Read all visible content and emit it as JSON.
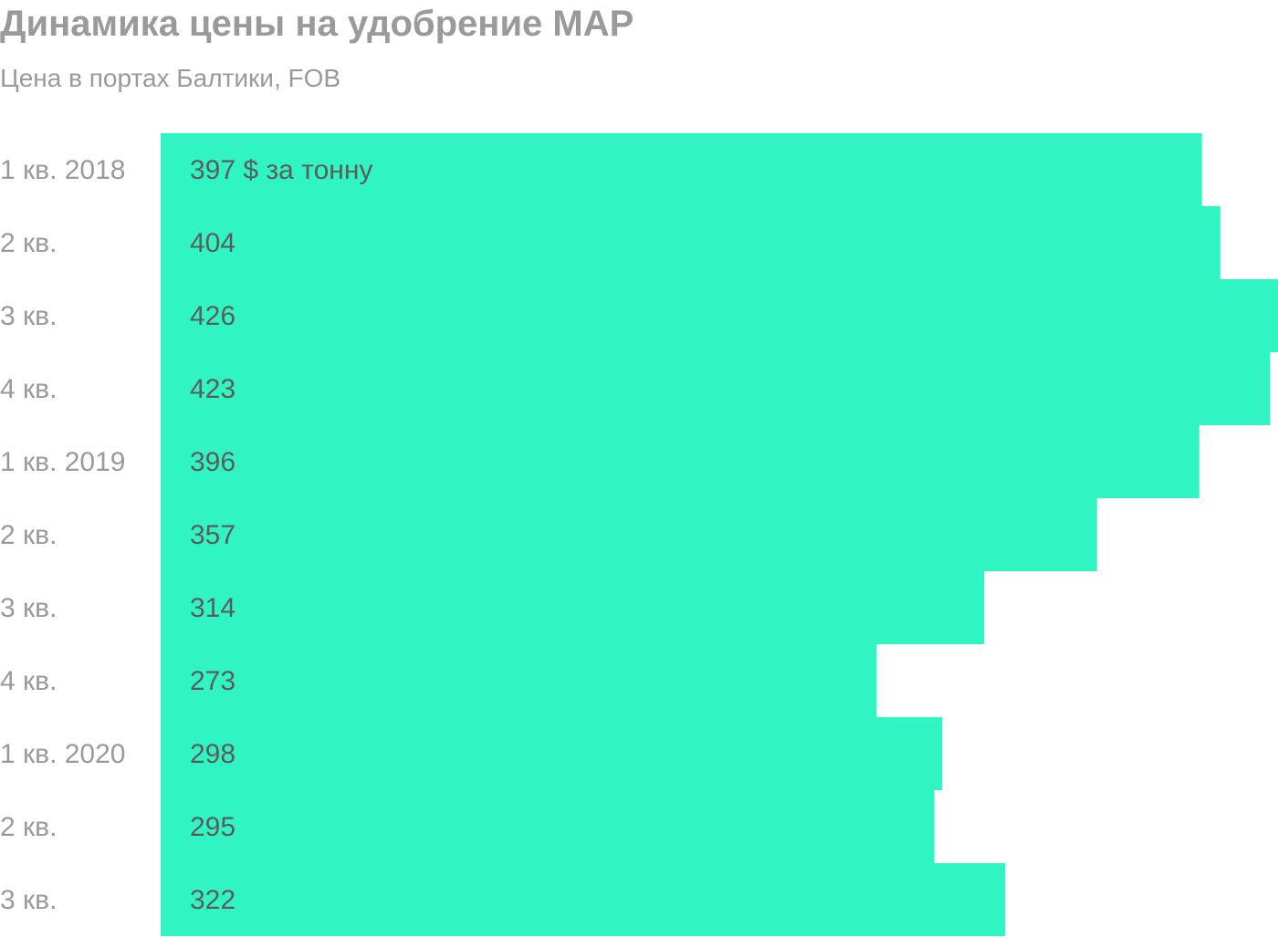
{
  "title": "Динамика цены на удобрение MAP",
  "subtitle": "Цена в портах Балтики, FOB",
  "colors": {
    "bar": "#31f4c3",
    "text_muted": "#9a9a9a",
    "text_value": "#5c5c5c"
  },
  "chart_data": {
    "type": "bar",
    "orientation": "horizontal",
    "title": "Динамика цены на удобрение MAP",
    "subtitle": "Цена в портах Балтики, FOB",
    "categories": [
      "1 кв. 2018",
      "2 кв.",
      "3 кв.",
      "4 кв.",
      "1 кв. 2019",
      "2 кв.",
      "3 кв.",
      "4 кв.",
      "1 кв. 2020",
      "2 кв.",
      "3 кв."
    ],
    "values": [
      397,
      404,
      426,
      423,
      396,
      357,
      314,
      273,
      298,
      295,
      322
    ],
    "value_labels": [
      "397 $ за тонну",
      "404",
      "426",
      "423",
      "396",
      "357",
      "314",
      "273",
      "298",
      "295",
      "322"
    ],
    "grid": false,
    "legend": "none"
  }
}
